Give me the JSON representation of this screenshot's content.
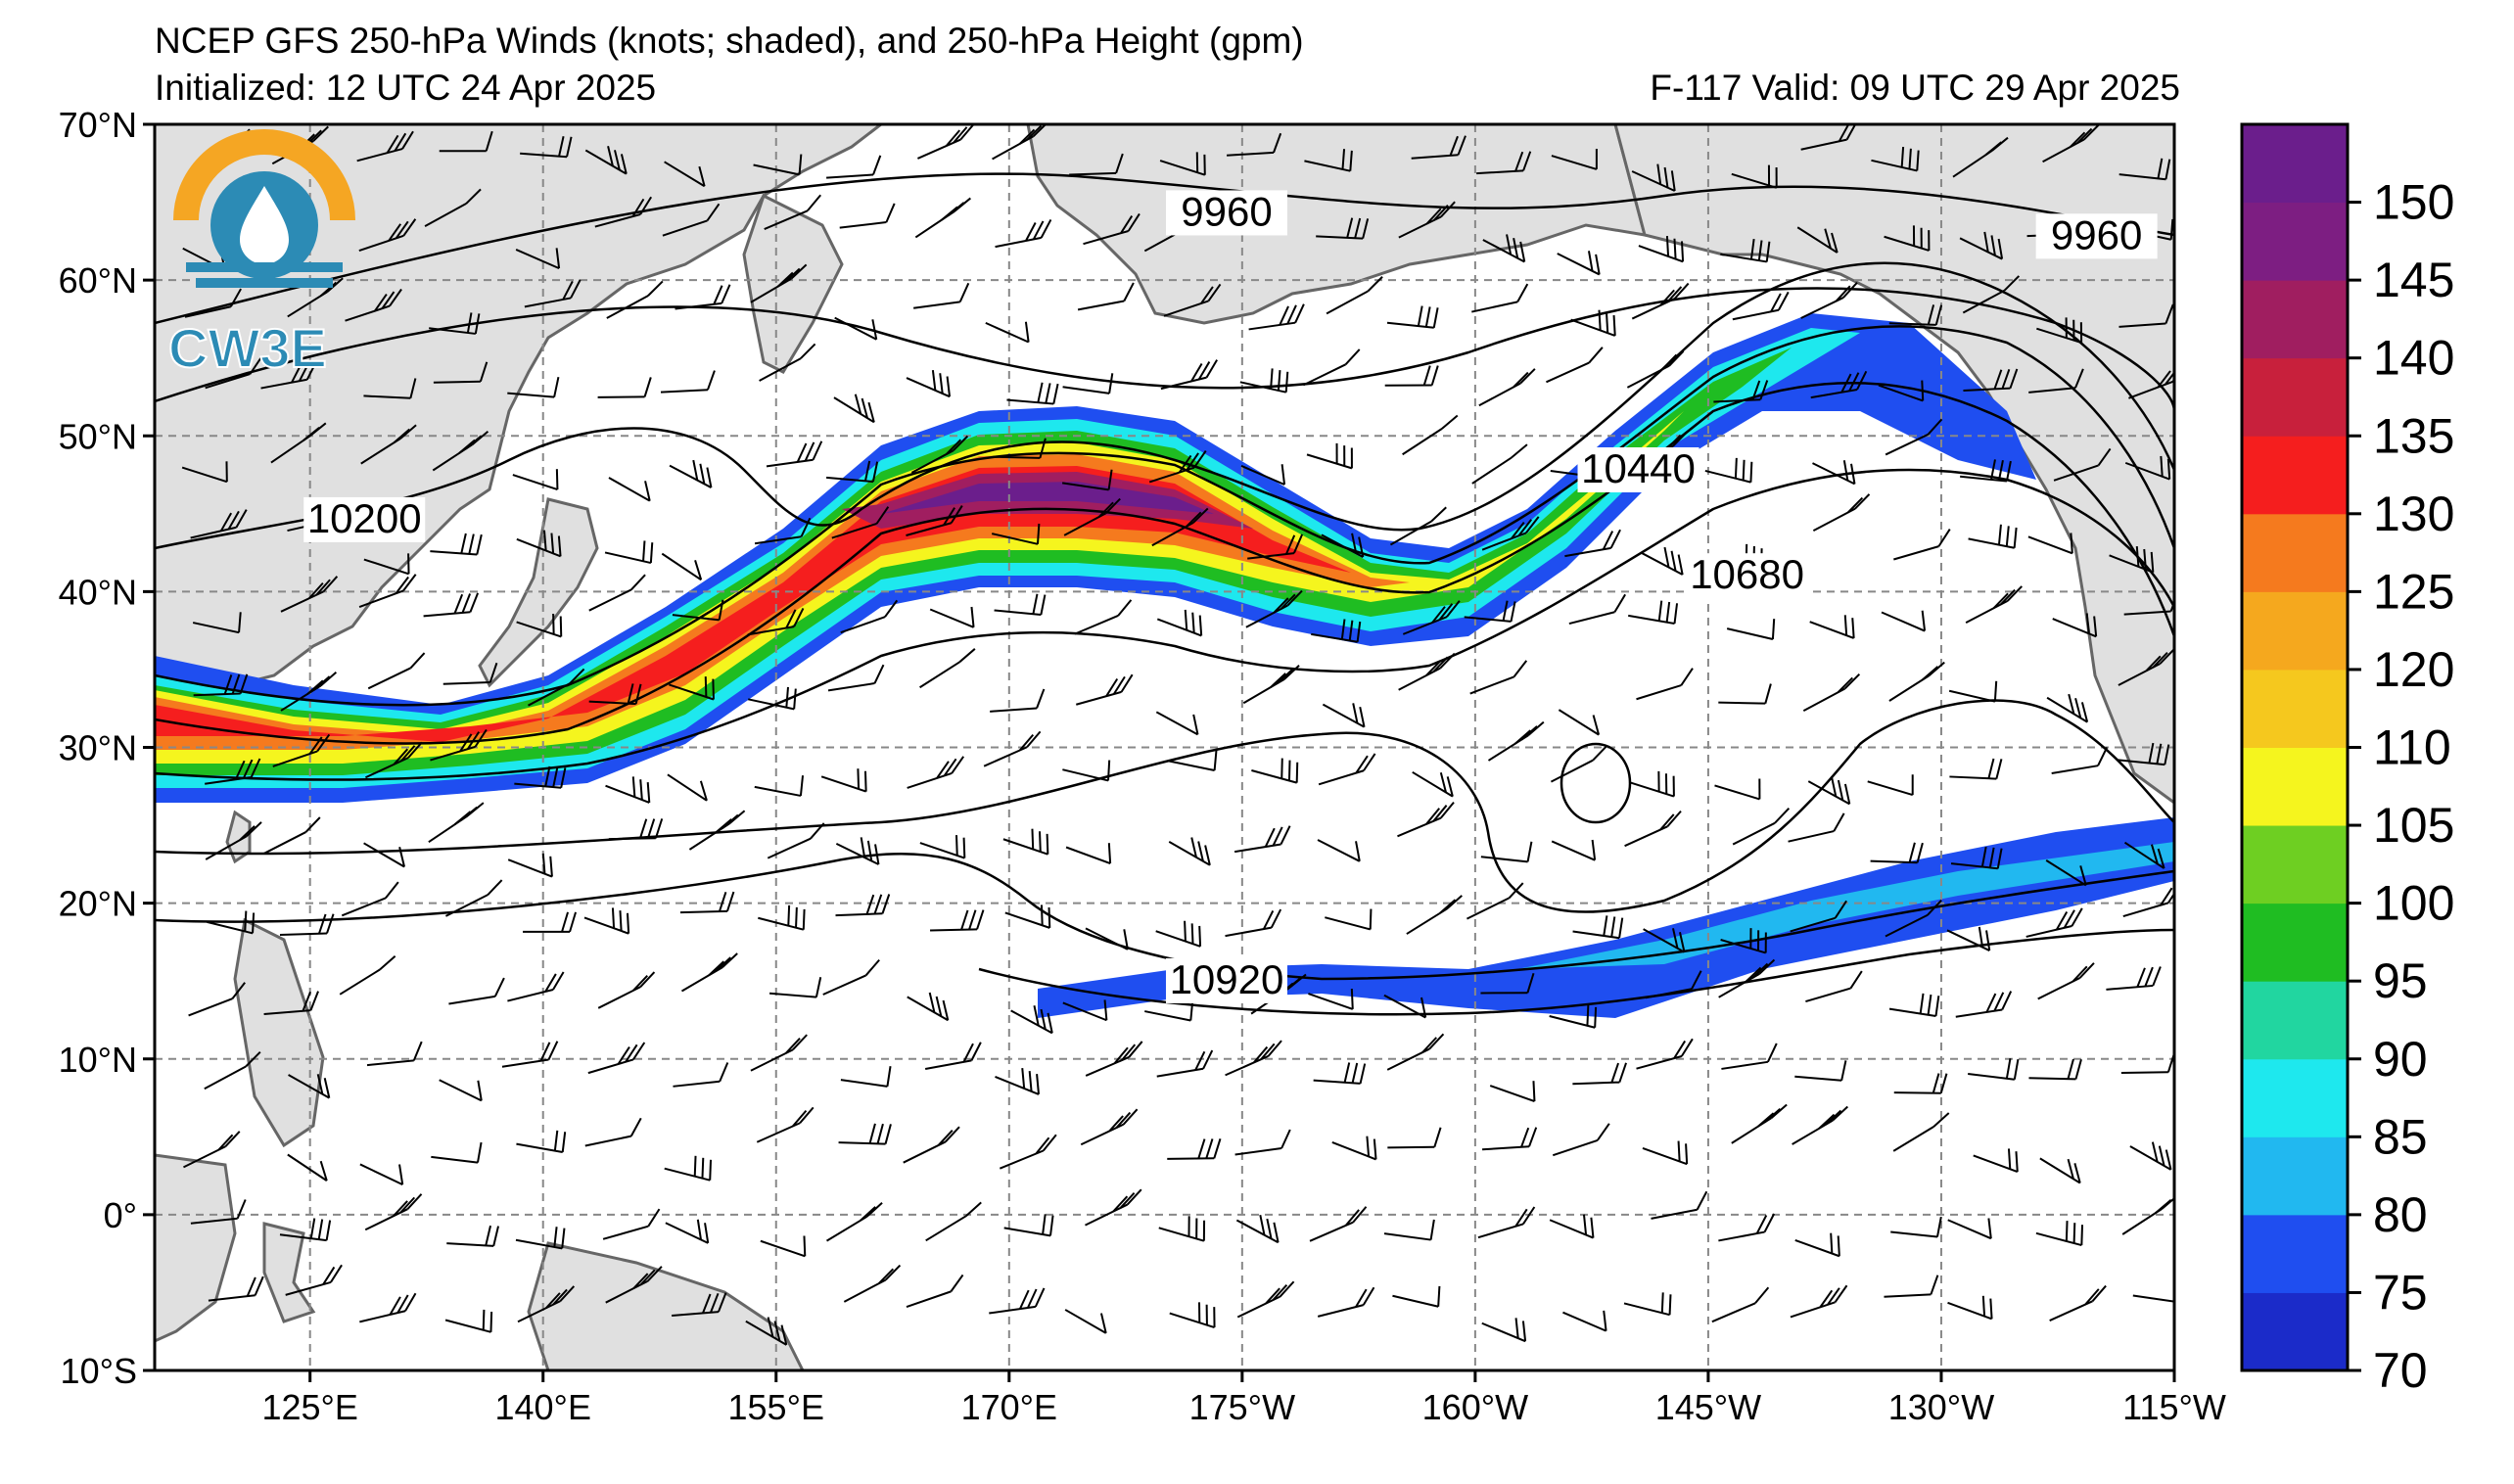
{
  "header": {
    "title": "NCEP GFS 250-hPa Winds (knots; shaded), and 250-hPa Height (gpm)",
    "initialized": "Initialized: 12 UTC 24 Apr 2025",
    "valid": "F-117  Valid: 09 UTC 29 Apr 2025"
  },
  "logo": {
    "text": "CW3E"
  },
  "map": {
    "lat_range": [
      -10,
      70
    ],
    "lon_range": [
      115,
      245
    ],
    "lat_labels": [
      "70°N",
      "60°N",
      "50°N",
      "40°N",
      "30°N",
      "20°N",
      "10°N",
      "0°",
      "10°S"
    ],
    "lat_values": [
      70,
      60,
      50,
      40,
      30,
      20,
      10,
      0,
      -10
    ],
    "lon_labels": [
      "125°E",
      "140°E",
      "155°E",
      "170°E",
      "175°W",
      "160°W",
      "145°W",
      "130°W",
      "115°W"
    ],
    "lon_values": [
      125,
      140,
      155,
      170,
      185,
      200,
      215,
      230,
      245
    ],
    "contour_labels": [
      {
        "text": "9960",
        "lon": 184,
        "lat": 63.5
      },
      {
        "text": "9960",
        "lon": 240,
        "lat": 62
      },
      {
        "text": "10200",
        "lon": 128.5,
        "lat": 43.8
      },
      {
        "text": "10440",
        "lon": 210.5,
        "lat": 47
      },
      {
        "text": "10680",
        "lon": 217.5,
        "lat": 40.2
      },
      {
        "text": "10920",
        "lon": 184,
        "lat": 14.2
      }
    ],
    "colors": {
      "land": "#e0e0e0",
      "coast": "#666666",
      "grid": "#888888",
      "contour": "#000000"
    }
  },
  "colorbar": {
    "labels": [
      "70",
      "75",
      "80",
      "85",
      "90",
      "95",
      "100",
      "105",
      "110",
      "120",
      "125",
      "130",
      "135",
      "140",
      "145",
      "150"
    ],
    "colors": [
      "#1b2bc9",
      "#1f4ef0",
      "#21b8f0",
      "#1ee8ee",
      "#21d6a0",
      "#1fbd22",
      "#6ecf22",
      "#f5f51e",
      "#f5c81e",
      "#f5a81e",
      "#f57a1e",
      "#f51e1e",
      "#c8203c",
      "#a01e60",
      "#7d1e82",
      "#6b1e8c"
    ]
  }
}
